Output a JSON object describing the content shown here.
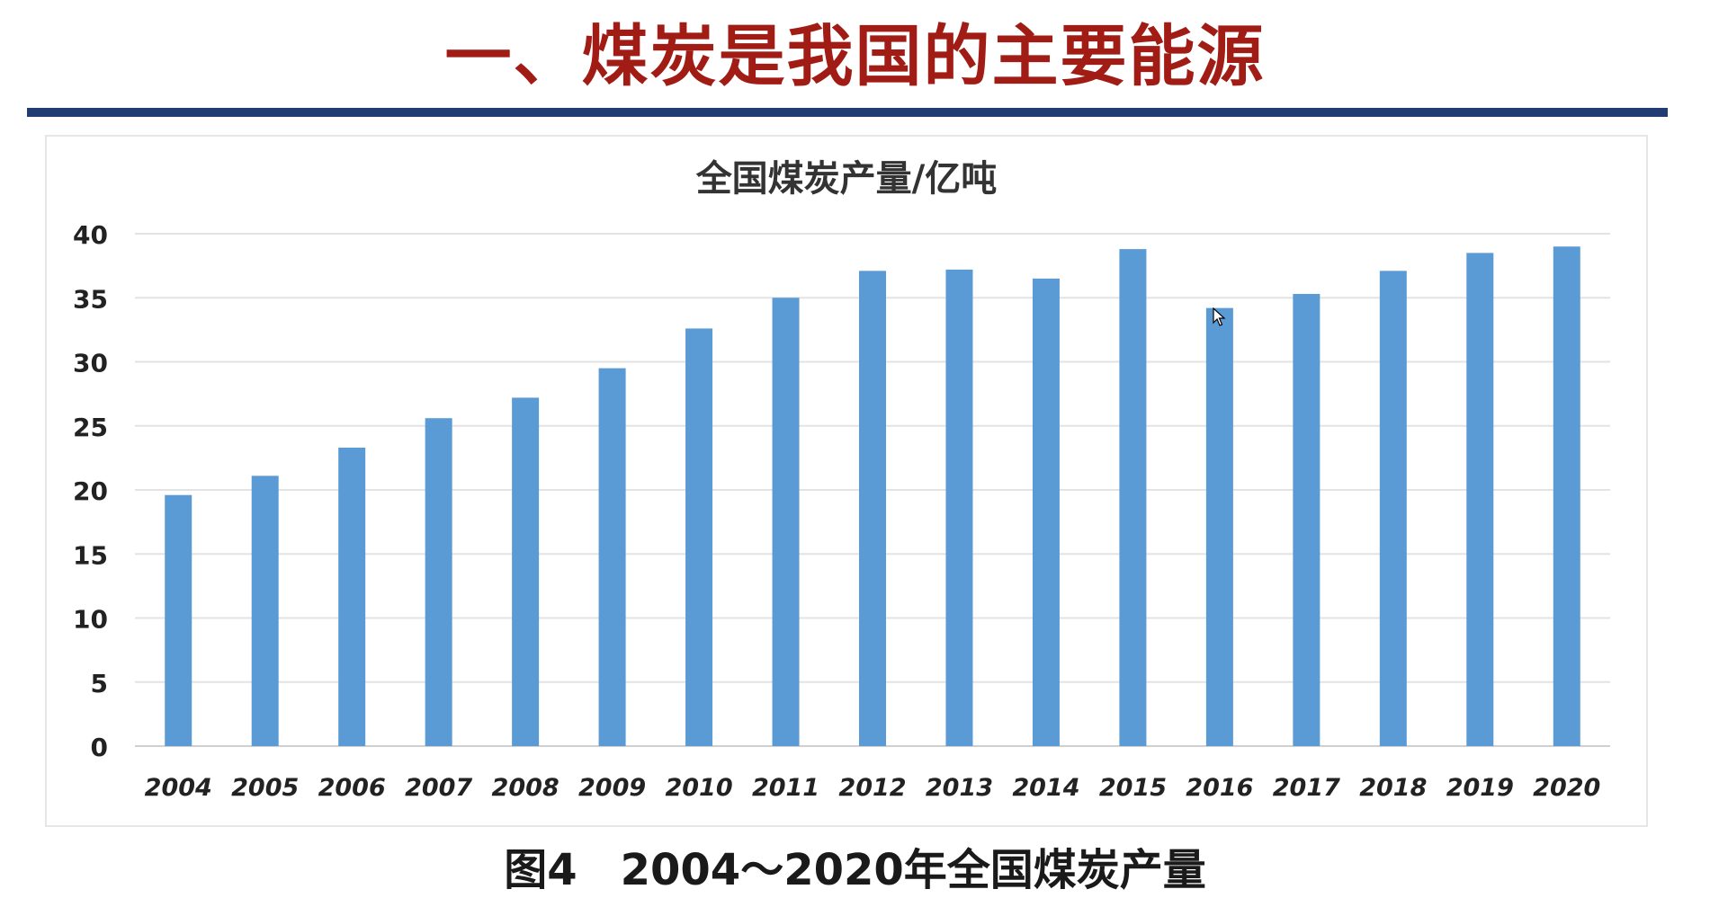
{
  "slide": {
    "title": "一、煤炭是我国的主要能源",
    "caption": "图4　2004～2020年全国煤炭产量",
    "title_color": "#a11c14",
    "rule_color": "#1f3d73"
  },
  "chart_data": {
    "type": "bar",
    "title": "全国煤炭产量/亿吨",
    "categories": [
      "2004",
      "2005",
      "2006",
      "2007",
      "2008",
      "2009",
      "2010",
      "2011",
      "2012",
      "2013",
      "2014",
      "2015",
      "2016",
      "2017",
      "2018",
      "2019",
      "2020"
    ],
    "series": [
      {
        "values": [
          19.6,
          21.1,
          23.3,
          25.6,
          27.2,
          29.5,
          32.6,
          35.0,
          37.1,
          37.2,
          36.5,
          38.8,
          34.2,
          35.3,
          37.1,
          38.5,
          39.0
        ]
      }
    ],
    "yticks": [
      0,
      5,
      10,
      15,
      20,
      25,
      30,
      35,
      40
    ],
    "ylim": [
      0,
      40
    ],
    "grid": true,
    "legend": "none",
    "bar_color": "#5b9bd5"
  }
}
